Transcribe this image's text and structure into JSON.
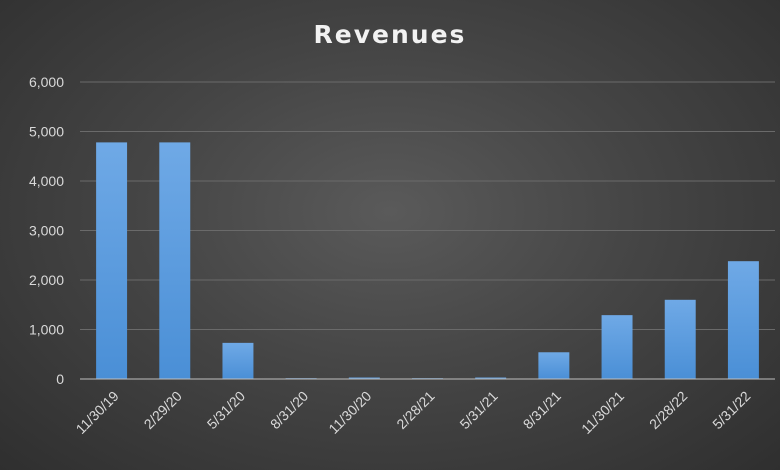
{
  "chart_data": {
    "type": "bar",
    "title": "Revenues",
    "xlabel": "",
    "ylabel": "",
    "ylim": [
      0,
      6000
    ],
    "yticks": [
      0,
      1000,
      2000,
      3000,
      4000,
      5000,
      6000
    ],
    "ytick_labels": [
      "0",
      "1,000",
      "2,000",
      "3,000",
      "4,000",
      "5,000",
      "6,000"
    ],
    "categories": [
      "11/30/19",
      "2/29/20",
      "5/31/20",
      "8/31/20",
      "11/30/20",
      "2/28/21",
      "5/31/21",
      "8/31/21",
      "11/30/21",
      "2/28/22",
      "5/31/22"
    ],
    "values": [
      4780,
      4780,
      730,
      10,
      30,
      10,
      30,
      540,
      1290,
      1600,
      2380
    ],
    "grid": true,
    "legend": "none",
    "colors": {
      "bar": "#4a8fd6",
      "bar_light": "#6fa9e6",
      "grid": "#6a6a6a",
      "axis": "#bfbfbf",
      "text": "#d9d9d9",
      "title": "#f2f2f2"
    }
  }
}
